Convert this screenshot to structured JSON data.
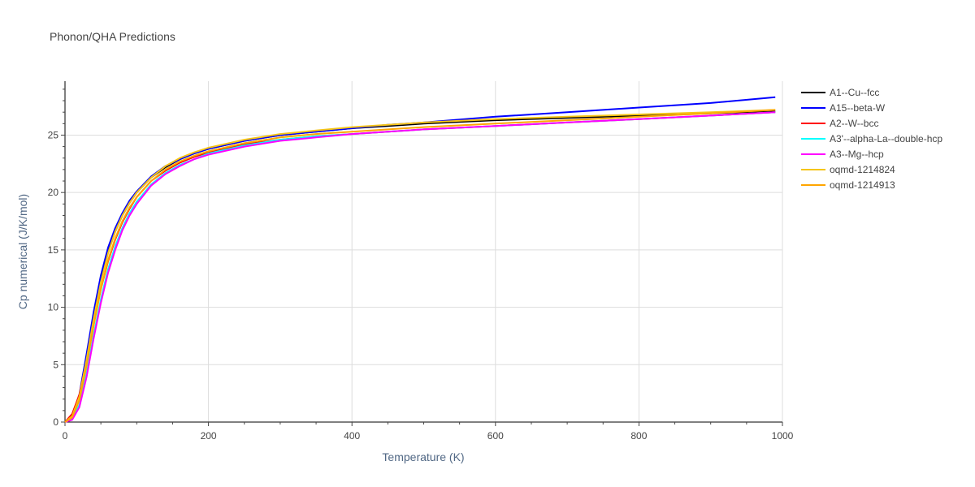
{
  "chart_data": {
    "type": "line",
    "title": "Phonon/QHA Predictions",
    "xlabel": "Temperature (K)",
    "ylabel": "Cp numerical (J/K/mol)",
    "xlim": [
      0,
      1000
    ],
    "ylim": [
      0,
      29.7
    ],
    "x_ticks": [
      0,
      200,
      400,
      600,
      800,
      1000
    ],
    "y_ticks": [
      0,
      5,
      10,
      15,
      20,
      25
    ],
    "grid": true,
    "legend_position": "right",
    "series": [
      {
        "name": "A1--Cu--fcc",
        "color": "#000000",
        "x": [
          0,
          10,
          20,
          30,
          40,
          50,
          60,
          70,
          80,
          90,
          100,
          120,
          140,
          160,
          180,
          200,
          250,
          300,
          350,
          400,
          450,
          500,
          600,
          700,
          800,
          900,
          990
        ],
        "y": [
          0,
          0.5,
          2.3,
          5.6,
          9.2,
          12.4,
          14.8,
          16.6,
          18.0,
          19.1,
          20.0,
          21.3,
          22.2,
          22.9,
          23.4,
          23.8,
          24.5,
          25.0,
          25.3,
          25.6,
          25.8,
          26.0,
          26.3,
          26.5,
          26.7,
          26.9,
          27.1
        ]
      },
      {
        "name": "A15--beta-W",
        "color": "#0000ff",
        "x": [
          0,
          10,
          20,
          30,
          40,
          50,
          60,
          70,
          80,
          90,
          100,
          120,
          140,
          160,
          180,
          200,
          250,
          300,
          350,
          400,
          450,
          500,
          600,
          700,
          800,
          900,
          990
        ],
        "y": [
          0,
          0.5,
          2.4,
          5.9,
          9.6,
          12.8,
          15.2,
          16.9,
          18.2,
          19.3,
          20.1,
          21.4,
          22.3,
          22.9,
          23.4,
          23.8,
          24.5,
          25.0,
          25.3,
          25.6,
          25.9,
          26.1,
          26.6,
          27.0,
          27.4,
          27.8,
          28.3
        ]
      },
      {
        "name": "A2--W--bcc",
        "color": "#ff0000",
        "x": [
          0,
          10,
          20,
          30,
          40,
          50,
          60,
          70,
          80,
          90,
          100,
          120,
          140,
          160,
          180,
          200,
          250,
          300,
          350,
          400,
          450,
          500,
          600,
          700,
          800,
          900,
          990
        ],
        "y": [
          0,
          0.7,
          2.4,
          5.3,
          8.6,
          11.6,
          14.0,
          15.9,
          17.4,
          18.6,
          19.6,
          21.0,
          21.9,
          22.6,
          23.1,
          23.5,
          24.2,
          24.6,
          24.9,
          25.1,
          25.3,
          25.5,
          25.8,
          26.1,
          26.4,
          26.7,
          27.0
        ]
      },
      {
        "name": "A3'--alpha-La--double-hcp",
        "color": "#00ffff",
        "x": [
          0,
          10,
          20,
          30,
          40,
          50,
          60,
          70,
          80,
          90,
          100,
          120,
          140,
          160,
          180,
          200,
          250,
          300,
          350,
          400,
          450,
          500,
          600,
          700,
          800,
          900,
          990
        ],
        "y": [
          0,
          0.3,
          1.5,
          4.2,
          7.6,
          10.7,
          13.3,
          15.3,
          16.9,
          18.2,
          19.2,
          20.7,
          21.7,
          22.4,
          22.9,
          23.4,
          24.1,
          24.6,
          24.9,
          25.1,
          25.3,
          25.5,
          25.8,
          26.1,
          26.4,
          26.7,
          27.0
        ]
      },
      {
        "name": "A3--Mg--hcp",
        "color": "#ff00ff",
        "x": [
          0,
          10,
          20,
          30,
          40,
          50,
          60,
          70,
          80,
          90,
          100,
          120,
          140,
          160,
          180,
          200,
          250,
          300,
          350,
          400,
          450,
          500,
          600,
          700,
          800,
          900,
          990
        ],
        "y": [
          0,
          0.2,
          1.3,
          3.9,
          7.3,
          10.4,
          13.0,
          15.0,
          16.7,
          18.0,
          19.0,
          20.6,
          21.6,
          22.3,
          22.9,
          23.3,
          24.0,
          24.5,
          24.8,
          25.1,
          25.3,
          25.5,
          25.8,
          26.1,
          26.4,
          26.7,
          27.0
        ]
      },
      {
        "name": "oqmd-1214824",
        "color": "#f5c518",
        "x": [
          0,
          10,
          20,
          30,
          40,
          50,
          60,
          70,
          80,
          90,
          100,
          120,
          140,
          160,
          180,
          200,
          250,
          300,
          350,
          400,
          450,
          500,
          600,
          700,
          800,
          900,
          990
        ],
        "y": [
          0,
          0.5,
          2.2,
          5.4,
          9.0,
          12.2,
          14.7,
          16.6,
          18.0,
          19.1,
          20.0,
          21.3,
          22.3,
          23.0,
          23.5,
          23.9,
          24.6,
          25.1,
          25.4,
          25.7,
          25.9,
          26.1,
          26.4,
          26.6,
          26.8,
          27.0,
          27.2
        ]
      },
      {
        "name": "oqmd-1214913",
        "color": "#ffa500",
        "x": [
          0,
          10,
          20,
          30,
          40,
          50,
          60,
          70,
          80,
          90,
          100,
          120,
          140,
          160,
          180,
          200,
          250,
          300,
          350,
          400,
          450,
          500,
          600,
          700,
          800,
          900,
          990
        ],
        "y": [
          0,
          0.4,
          1.9,
          4.9,
          8.4,
          11.6,
          14.1,
          16.0,
          17.5,
          18.7,
          19.6,
          21.0,
          22.0,
          22.7,
          23.2,
          23.6,
          24.3,
          24.8,
          25.1,
          25.3,
          25.5,
          25.7,
          26.0,
          26.3,
          26.6,
          26.9,
          27.2
        ]
      }
    ]
  }
}
